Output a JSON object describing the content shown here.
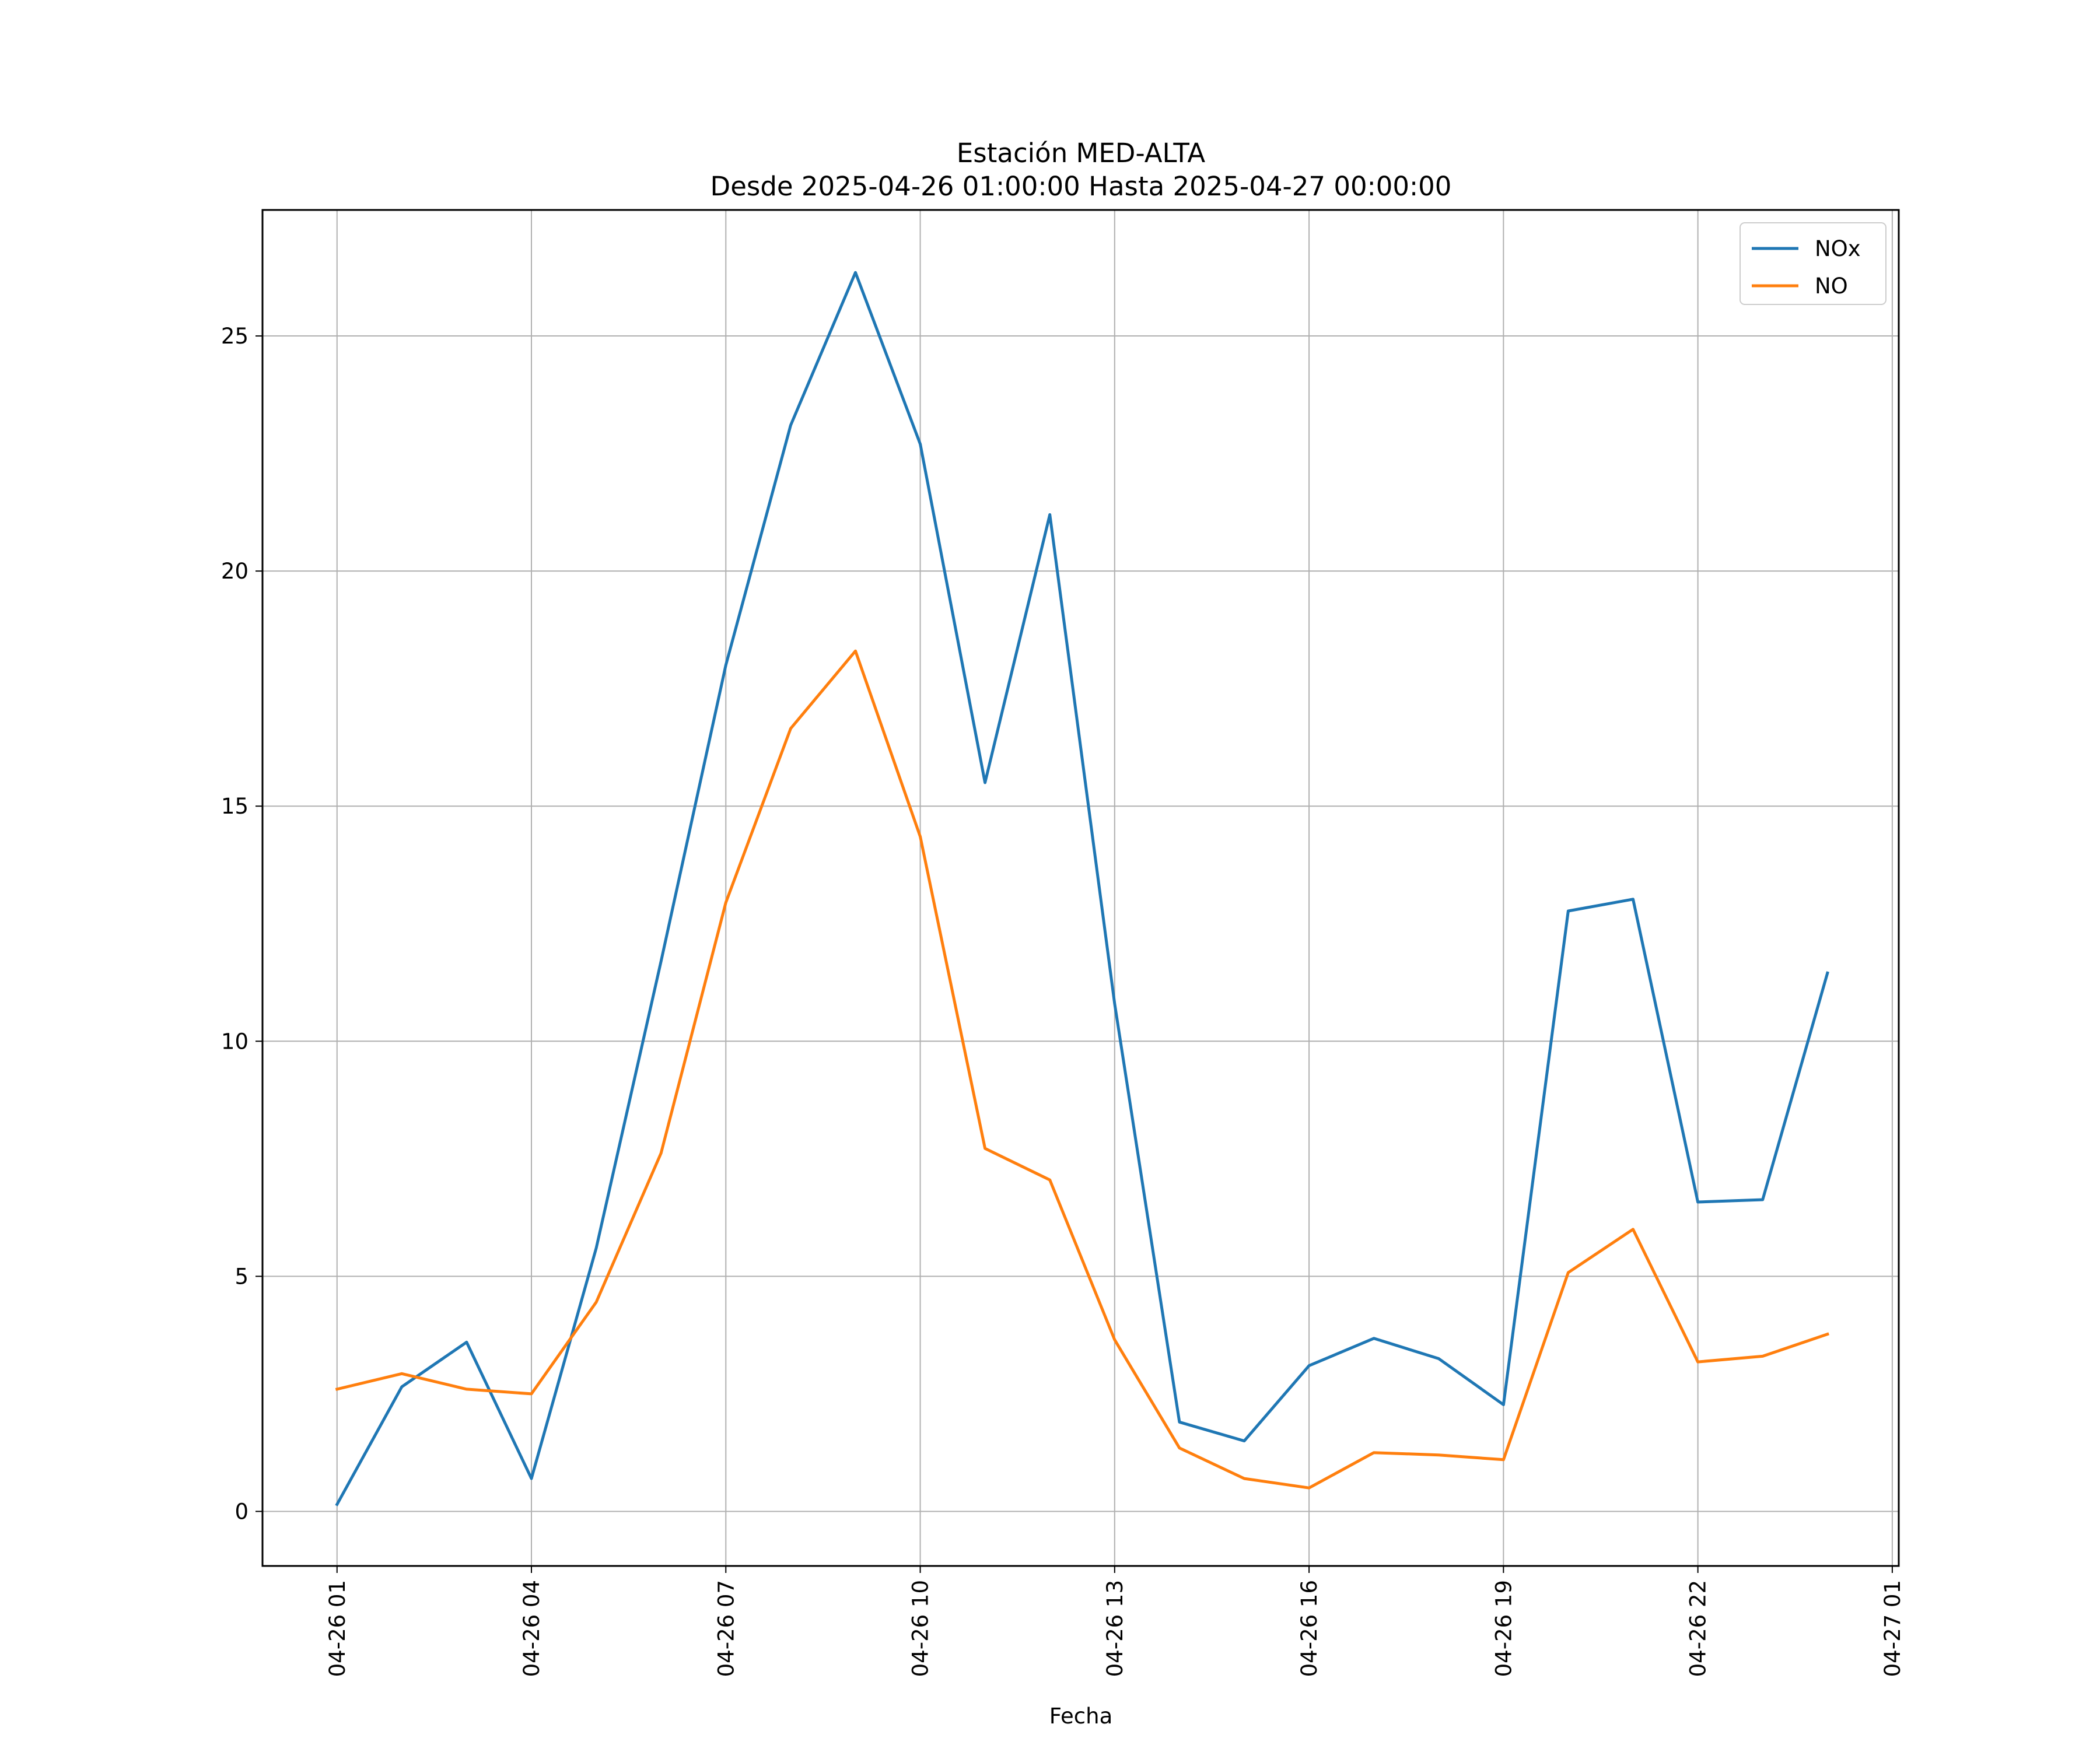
{
  "chart_data": {
    "type": "line",
    "title": "Estación MED-ALTA",
    "subtitle": "Desde 2025-04-26 01:00:00 Hasta 2025-04-27 00:00:00",
    "xlabel": "Fecha",
    "ylabel": "",
    "x": [
      "2025-04-26 01:00",
      "2025-04-26 02:00",
      "2025-04-26 03:00",
      "2025-04-26 04:00",
      "2025-04-26 05:00",
      "2025-04-26 06:00",
      "2025-04-26 07:00",
      "2025-04-26 08:00",
      "2025-04-26 09:00",
      "2025-04-26 10:00",
      "2025-04-26 11:00",
      "2025-04-26 12:00",
      "2025-04-26 13:00",
      "2025-04-26 14:00",
      "2025-04-26 15:00",
      "2025-04-26 16:00",
      "2025-04-26 17:00",
      "2025-04-26 18:00",
      "2025-04-26 19:00",
      "2025-04-26 20:00",
      "2025-04-26 21:00",
      "2025-04-26 22:00",
      "2025-04-26 23:00",
      "2025-04-27 00:00"
    ],
    "series": [
      {
        "name": "NOx",
        "color": "#1f77b4",
        "values": [
          0.15,
          2.65,
          3.6,
          0.7,
          5.6,
          11.7,
          18.0,
          23.1,
          26.35,
          22.7,
          15.5,
          21.2,
          10.8,
          1.9,
          1.5,
          3.1,
          3.68,
          3.25,
          2.27,
          12.77,
          13.02,
          6.58,
          6.63,
          11.45
        ]
      },
      {
        "name": "NO",
        "color": "#ff7f0e",
        "values": [
          2.6,
          2.93,
          2.6,
          2.5,
          4.45,
          7.62,
          12.95,
          16.65,
          18.3,
          14.35,
          7.72,
          7.05,
          3.65,
          1.35,
          0.7,
          0.5,
          1.25,
          1.2,
          1.1,
          5.08,
          6.0,
          3.18,
          3.3,
          3.77
        ]
      }
    ],
    "xticks": [
      "04-26 01",
      "04-26 04",
      "04-26 07",
      "04-26 10",
      "04-26 13",
      "04-26 16",
      "04-26 19",
      "04-26 22",
      "04-27 01"
    ],
    "yticks": [
      0,
      5,
      10,
      15,
      20,
      25
    ],
    "xlim": [
      "2025-04-25 23:51",
      "2025-04-27 01:06"
    ],
    "ylim": [
      -1.16,
      27.68
    ],
    "grid": true,
    "legend_position": "top-right"
  }
}
